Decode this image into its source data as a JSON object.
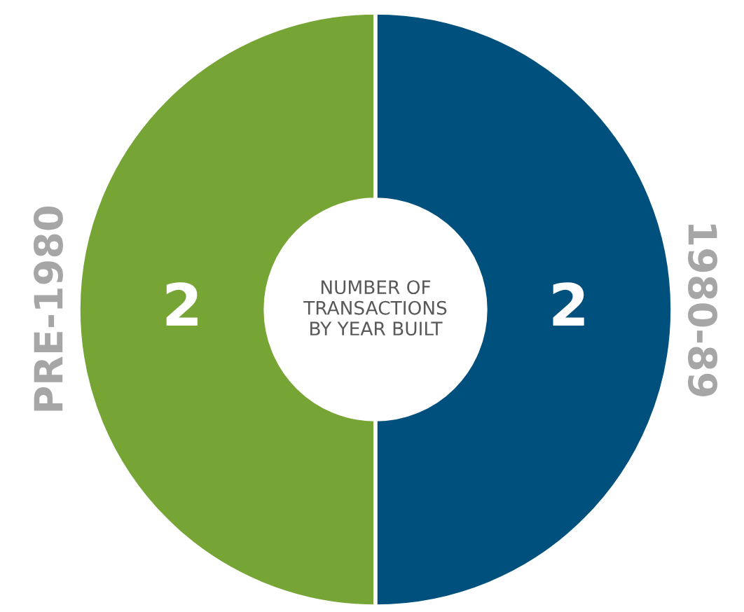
{
  "chart_data": {
    "type": "donut",
    "title": "NUMBER OF\nTRANSACTIONS\nBY YEAR BUILT",
    "categories": [
      "PRE-1980",
      "1980-89"
    ],
    "values": [
      2,
      2
    ],
    "colors": [
      "#76a535",
      "#00507d"
    ],
    "data_labels": true,
    "legend": false
  }
}
